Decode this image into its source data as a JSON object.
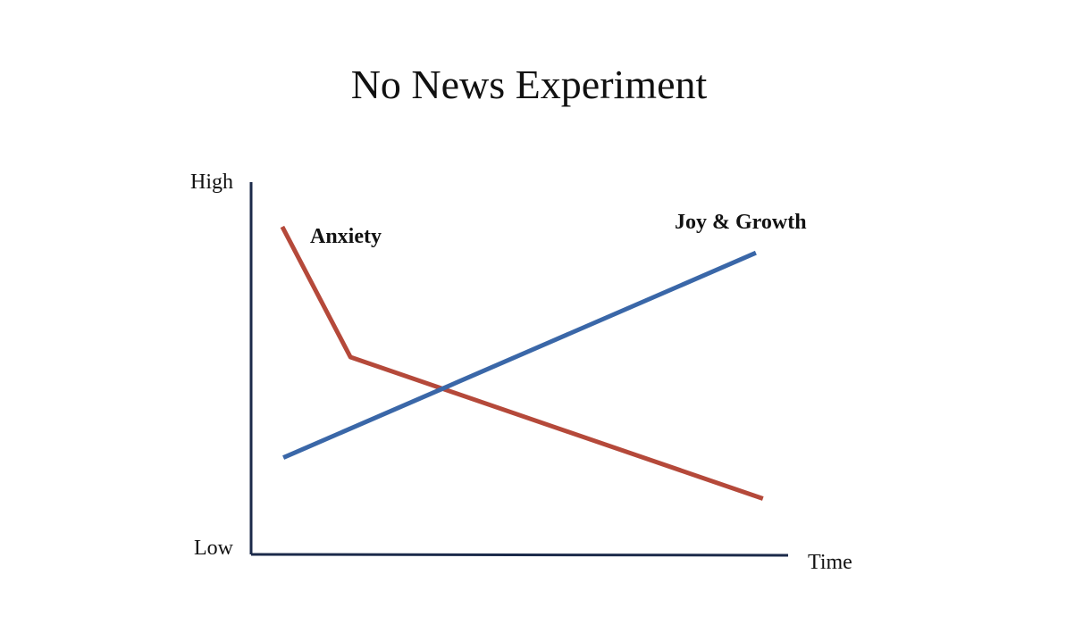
{
  "chart_data": {
    "type": "line",
    "title": "No News Experiment",
    "xlabel": "Time",
    "ylabel": "",
    "y_tick_labels": {
      "high": "High",
      "low": "Low"
    },
    "xlim": [
      0,
      100
    ],
    "ylim": [
      0,
      100
    ],
    "grid": false,
    "legend": "none",
    "axis_color": "#1b2a4a",
    "series": [
      {
        "name": "Anxiety",
        "color": "#b5493a",
        "points": [
          [
            5.8,
            88
          ],
          [
            18.5,
            53
          ],
          [
            95.3,
            15
          ]
        ]
      },
      {
        "name": "Joy & Growth",
        "color": "#3a67a8",
        "points": [
          [
            6.0,
            26
          ],
          [
            94.0,
            81
          ]
        ]
      }
    ]
  }
}
